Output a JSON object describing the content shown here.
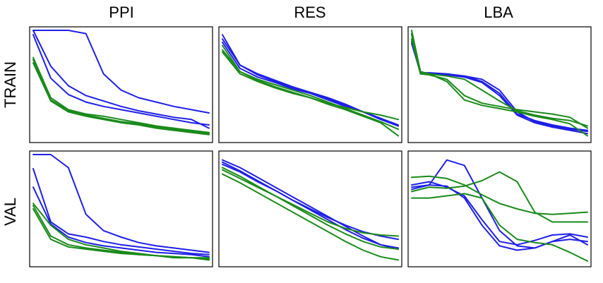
{
  "colors": {
    "blue": "#1f1fe6",
    "green": "#1a8a1a"
  },
  "column_titles": [
    "PPI",
    "RES",
    "LBA"
  ],
  "row_titles": [
    "TRAIN",
    "VAL"
  ],
  "chart_data": [
    {
      "type": "line",
      "column": "PPI",
      "row": "TRAIN",
      "xlim": [
        0,
        1
      ],
      "ylim": [
        0,
        1
      ],
      "x": [
        0,
        0.1,
        0.2,
        0.3,
        0.4,
        0.5,
        0.6,
        0.7,
        0.8,
        0.9,
        1.0
      ],
      "series": [
        {
          "color": "blue",
          "values": [
            1.0,
            1.0,
            1.0,
            0.97,
            0.6,
            0.45,
            0.38,
            0.34,
            0.3,
            0.27,
            0.24
          ]
        },
        {
          "color": "blue",
          "values": [
            1.0,
            0.67,
            0.49,
            0.4,
            0.35,
            0.3,
            0.26,
            0.23,
            0.2,
            0.18,
            0.1
          ]
        },
        {
          "color": "blue",
          "values": [
            0.96,
            0.56,
            0.41,
            0.34,
            0.3,
            0.27,
            0.24,
            0.21,
            0.18,
            0.15,
            0.13
          ]
        },
        {
          "color": "green",
          "values": [
            0.75,
            0.38,
            0.27,
            0.23,
            0.21,
            0.18,
            0.15,
            0.12,
            0.1,
            0.08,
            0.06
          ]
        },
        {
          "color": "green",
          "values": [
            0.73,
            0.36,
            0.26,
            0.22,
            0.19,
            0.16,
            0.14,
            0.11,
            0.09,
            0.07,
            0.05
          ]
        },
        {
          "color": "green",
          "values": [
            0.7,
            0.35,
            0.25,
            0.21,
            0.18,
            0.15,
            0.13,
            0.1,
            0.08,
            0.06,
            0.04
          ]
        }
      ]
    },
    {
      "type": "line",
      "column": "RES",
      "row": "TRAIN",
      "xlim": [
        0,
        1
      ],
      "ylim": [
        0,
        1
      ],
      "x": [
        0,
        0.1,
        0.2,
        0.3,
        0.4,
        0.5,
        0.6,
        0.7,
        0.8,
        0.9,
        1.0
      ],
      "series": [
        {
          "color": "blue",
          "values": [
            0.96,
            0.68,
            0.6,
            0.54,
            0.48,
            0.43,
            0.38,
            0.32,
            0.25,
            0.19,
            0.12
          ]
        },
        {
          "color": "blue",
          "values": [
            0.92,
            0.68,
            0.59,
            0.53,
            0.47,
            0.42,
            0.37,
            0.31,
            0.25,
            0.19,
            0.13
          ]
        },
        {
          "color": "blue",
          "values": [
            0.89,
            0.65,
            0.57,
            0.52,
            0.46,
            0.42,
            0.36,
            0.3,
            0.25,
            0.18,
            0.12
          ]
        },
        {
          "color": "green",
          "values": [
            0.82,
            0.62,
            0.54,
            0.48,
            0.43,
            0.38,
            0.32,
            0.27,
            0.21,
            0.15,
            0.03
          ]
        },
        {
          "color": "green",
          "values": [
            0.8,
            0.6,
            0.53,
            0.47,
            0.42,
            0.38,
            0.33,
            0.29,
            0.25,
            0.22,
            0.18
          ]
        },
        {
          "color": "green",
          "values": [
            0.86,
            0.62,
            0.55,
            0.5,
            0.45,
            0.4,
            0.34,
            0.28,
            0.22,
            0.16,
            0.09
          ]
        }
      ]
    },
    {
      "type": "line",
      "column": "LBA",
      "row": "TRAIN",
      "xlim": [
        0,
        1
      ],
      "ylim": [
        0,
        1
      ],
      "x": [
        0,
        0.05,
        0.1,
        0.2,
        0.3,
        0.4,
        0.5,
        0.6,
        0.7,
        0.8,
        0.9,
        1.0
      ],
      "series": [
        {
          "color": "blue",
          "values": [
            0.97,
            0.6,
            0.6,
            0.59,
            0.58,
            0.55,
            0.45,
            0.25,
            0.16,
            0.12,
            0.09,
            0.07
          ]
        },
        {
          "color": "blue",
          "values": [
            0.9,
            0.6,
            0.6,
            0.59,
            0.57,
            0.52,
            0.4,
            0.22,
            0.15,
            0.11,
            0.08,
            0.05
          ]
        },
        {
          "color": "blue",
          "values": [
            0.88,
            0.61,
            0.61,
            0.6,
            0.58,
            0.53,
            0.42,
            0.23,
            0.17,
            0.13,
            0.1,
            0.08
          ]
        },
        {
          "color": "green",
          "values": [
            1.0,
            0.62,
            0.6,
            0.58,
            0.55,
            0.45,
            0.35,
            0.26,
            0.22,
            0.19,
            0.17,
            0.12
          ]
        },
        {
          "color": "green",
          "values": [
            0.96,
            0.61,
            0.6,
            0.53,
            0.36,
            0.31,
            0.28,
            0.25,
            0.21,
            0.18,
            0.14,
            0.03
          ]
        },
        {
          "color": "green",
          "values": [
            0.92,
            0.6,
            0.59,
            0.55,
            0.4,
            0.33,
            0.3,
            0.27,
            0.25,
            0.23,
            0.2,
            0.1
          ]
        }
      ]
    },
    {
      "type": "line",
      "column": "PPI",
      "row": "VAL",
      "xlim": [
        0,
        1
      ],
      "ylim": [
        0,
        1
      ],
      "x": [
        0,
        0.1,
        0.2,
        0.3,
        0.4,
        0.5,
        0.6,
        0.7,
        0.8,
        0.9,
        1.0
      ],
      "series": [
        {
          "color": "blue",
          "values": [
            1.0,
            1.0,
            0.88,
            0.45,
            0.3,
            0.24,
            0.19,
            0.16,
            0.14,
            0.12,
            0.1
          ]
        },
        {
          "color": "blue",
          "values": [
            0.87,
            0.38,
            0.27,
            0.24,
            0.2,
            0.17,
            0.15,
            0.13,
            0.11,
            0.09,
            0.08
          ]
        },
        {
          "color": "blue",
          "values": [
            0.7,
            0.36,
            0.24,
            0.19,
            0.16,
            0.14,
            0.12,
            0.1,
            0.09,
            0.08,
            0.06
          ]
        },
        {
          "color": "green",
          "values": [
            0.55,
            0.35,
            0.22,
            0.17,
            0.14,
            0.11,
            0.09,
            0.07,
            0.05,
            0.05,
            0.03
          ]
        },
        {
          "color": "green",
          "values": [
            0.53,
            0.25,
            0.17,
            0.14,
            0.12,
            0.1,
            0.08,
            0.07,
            0.06,
            0.05,
            0.04
          ]
        },
        {
          "color": "green",
          "values": [
            0.5,
            0.22,
            0.15,
            0.13,
            0.11,
            0.09,
            0.08,
            0.07,
            0.06,
            0.05,
            0.05
          ]
        }
      ]
    },
    {
      "type": "line",
      "column": "RES",
      "row": "VAL",
      "xlim": [
        0,
        1
      ],
      "ylim": [
        0,
        1
      ],
      "x": [
        0,
        0.1,
        0.2,
        0.3,
        0.4,
        0.5,
        0.6,
        0.7,
        0.8,
        0.9,
        1.0
      ],
      "series": [
        {
          "color": "blue",
          "values": [
            0.95,
            0.88,
            0.79,
            0.7,
            0.61,
            0.52,
            0.43,
            0.34,
            0.25,
            0.17,
            0.13
          ]
        },
        {
          "color": "blue",
          "values": [
            0.93,
            0.85,
            0.76,
            0.67,
            0.58,
            0.49,
            0.4,
            0.31,
            0.23,
            0.17,
            0.14
          ]
        },
        {
          "color": "blue",
          "values": [
            0.91,
            0.84,
            0.75,
            0.67,
            0.58,
            0.5,
            0.42,
            0.35,
            0.29,
            0.25,
            0.22
          ]
        },
        {
          "color": "green",
          "values": [
            0.82,
            0.74,
            0.65,
            0.56,
            0.47,
            0.38,
            0.29,
            0.2,
            0.12,
            0.06,
            0.03
          ]
        },
        {
          "color": "green",
          "values": [
            0.86,
            0.78,
            0.7,
            0.62,
            0.54,
            0.46,
            0.38,
            0.32,
            0.28,
            0.26,
            0.25
          ]
        },
        {
          "color": "green",
          "values": [
            0.88,
            0.8,
            0.71,
            0.62,
            0.53,
            0.44,
            0.35,
            0.27,
            0.2,
            0.15,
            0.13
          ]
        }
      ]
    },
    {
      "type": "line",
      "column": "LBA",
      "row": "VAL",
      "xlim": [
        0,
        1
      ],
      "ylim": [
        0,
        1
      ],
      "x": [
        0,
        0.1,
        0.2,
        0.3,
        0.4,
        0.5,
        0.6,
        0.7,
        0.8,
        0.9,
        1.0
      ],
      "series": [
        {
          "color": "blue",
          "values": [
            0.68,
            0.72,
            0.95,
            0.9,
            0.6,
            0.3,
            0.16,
            0.14,
            0.2,
            0.26,
            0.17
          ]
        },
        {
          "color": "blue",
          "values": [
            0.72,
            0.75,
            0.7,
            0.62,
            0.4,
            0.2,
            0.17,
            0.21,
            0.26,
            0.27,
            0.24
          ]
        },
        {
          "color": "blue",
          "values": [
            0.7,
            0.72,
            0.71,
            0.6,
            0.35,
            0.16,
            0.12,
            0.14,
            0.2,
            0.22,
            0.2
          ]
        },
        {
          "color": "green",
          "values": [
            0.79,
            0.8,
            0.78,
            0.72,
            0.63,
            0.55,
            0.5,
            0.46,
            0.45,
            0.46,
            0.47
          ]
        },
        {
          "color": "green",
          "values": [
            0.6,
            0.6,
            0.62,
            0.64,
            0.6,
            0.35,
            0.22,
            0.19,
            0.17,
            0.1,
            0.02
          ]
        },
        {
          "color": "green",
          "values": [
            0.66,
            0.7,
            0.69,
            0.71,
            0.76,
            0.84,
            0.75,
            0.47,
            0.38,
            0.38,
            0.38
          ]
        }
      ]
    }
  ]
}
